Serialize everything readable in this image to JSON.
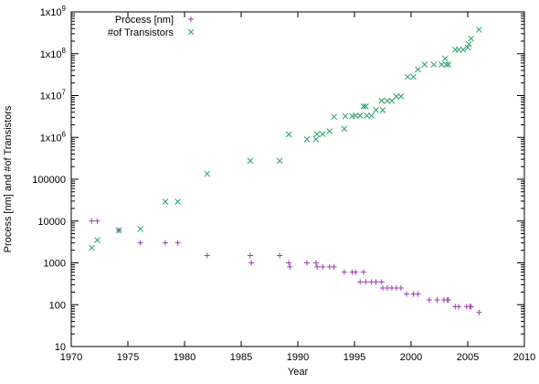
{
  "chart_data": {
    "type": "scatter",
    "title": "",
    "xlabel": "Year",
    "ylabel": "Process [nm] and #of Transistors",
    "xlim": [
      1970,
      2010
    ],
    "ylim": [
      10,
      1000000000
    ],
    "yscale": "log",
    "grid": false,
    "legend_position": "top-left",
    "x_ticks": [
      1970,
      1975,
      1980,
      1985,
      1990,
      1995,
      2000,
      2005,
      2010
    ],
    "y_ticks": [
      {
        "value": 10,
        "label": "10"
      },
      {
        "value": 100,
        "label": "100"
      },
      {
        "value": 1000,
        "label": "1000"
      },
      {
        "value": 10000,
        "label": "10000"
      },
      {
        "value": 100000,
        "label": "100000"
      },
      {
        "value": 1000000,
        "base": "1x10",
        "exp": "6"
      },
      {
        "value": 10000000,
        "base": "1x10",
        "exp": "7"
      },
      {
        "value": 100000000,
        "base": "1x10",
        "exp": "8"
      },
      {
        "value": 1000000000,
        "base": "1x10",
        "exp": "9"
      }
    ],
    "series": [
      {
        "name": "Process [nm]",
        "marker": "plus",
        "color": "#9B3FB5",
        "points": [
          [
            1971.8,
            10000
          ],
          [
            1972.3,
            10000
          ],
          [
            1974.2,
            6000
          ],
          [
            1976.1,
            3000
          ],
          [
            1978.3,
            3000
          ],
          [
            1979.4,
            3000
          ],
          [
            1982.0,
            1500
          ],
          [
            1985.8,
            1500
          ],
          [
            1985.9,
            1000
          ],
          [
            1988.4,
            1500
          ],
          [
            1989.2,
            1000
          ],
          [
            1989.3,
            800
          ],
          [
            1990.8,
            1000
          ],
          [
            1991.6,
            1000
          ],
          [
            1991.7,
            800
          ],
          [
            1992.2,
            800
          ],
          [
            1992.8,
            800
          ],
          [
            1993.2,
            800
          ],
          [
            1994.1,
            600
          ],
          [
            1994.8,
            600
          ],
          [
            1995.1,
            600
          ],
          [
            1995.5,
            350
          ],
          [
            1995.8,
            600
          ],
          [
            1996.0,
            350
          ],
          [
            1996.5,
            350
          ],
          [
            1996.9,
            350
          ],
          [
            1997.4,
            350
          ],
          [
            1997.5,
            250
          ],
          [
            1997.9,
            250
          ],
          [
            1998.3,
            250
          ],
          [
            1998.7,
            250
          ],
          [
            1999.1,
            250
          ],
          [
            1999.6,
            180
          ],
          [
            2000.2,
            180
          ],
          [
            2000.6,
            180
          ],
          [
            2001.6,
            130
          ],
          [
            2002.3,
            130
          ],
          [
            2002.9,
            130
          ],
          [
            2003.2,
            130
          ],
          [
            2003.3,
            130
          ],
          [
            2003.9,
            90
          ],
          [
            2004.2,
            90
          ],
          [
            2004.9,
            90
          ],
          [
            2005.2,
            90
          ],
          [
            2005.3,
            90
          ],
          [
            2006.0,
            65
          ]
        ]
      },
      {
        "name": "#of Transistors",
        "marker": "cross",
        "color": "#2E9E6A",
        "points": [
          [
            1971.8,
            2300
          ],
          [
            1972.3,
            3500
          ],
          [
            1974.2,
            6000
          ],
          [
            1976.1,
            6500
          ],
          [
            1978.3,
            29000
          ],
          [
            1979.4,
            29000
          ],
          [
            1982.0,
            134000
          ],
          [
            1985.8,
            275000
          ],
          [
            1988.4,
            275000
          ],
          [
            1989.2,
            1180000
          ],
          [
            1990.8,
            900000
          ],
          [
            1991.6,
            900000
          ],
          [
            1991.7,
            1200000
          ],
          [
            1992.2,
            1200000
          ],
          [
            1992.8,
            1400000
          ],
          [
            1993.2,
            3100000
          ],
          [
            1994.1,
            1600000
          ],
          [
            1994.2,
            3200000
          ],
          [
            1994.8,
            3200000
          ],
          [
            1995.1,
            3300000
          ],
          [
            1995.5,
            3300000
          ],
          [
            1995.8,
            5500000
          ],
          [
            1996.0,
            5500000
          ],
          [
            1996.1,
            3300000
          ],
          [
            1996.5,
            3300000
          ],
          [
            1996.9,
            4500000
          ],
          [
            1997.4,
            7500000
          ],
          [
            1997.5,
            4500000
          ],
          [
            1997.9,
            7500000
          ],
          [
            1998.3,
            7500000
          ],
          [
            1998.7,
            9500000
          ],
          [
            1999.1,
            9500000
          ],
          [
            1999.7,
            28000000
          ],
          [
            2000.2,
            28000000
          ],
          [
            2000.6,
            42000000
          ],
          [
            2001.2,
            55000000
          ],
          [
            2002.0,
            55000000
          ],
          [
            2002.7,
            55000000
          ],
          [
            2003.0,
            77000000
          ],
          [
            2003.1,
            55000000
          ],
          [
            2003.3,
            55000000
          ],
          [
            2003.9,
            125000000
          ],
          [
            2004.2,
            125000000
          ],
          [
            2004.6,
            125000000
          ],
          [
            2005.0,
            140000000
          ],
          [
            2005.1,
            169000000
          ],
          [
            2005.3,
            230000000
          ],
          [
            2006.0,
            376000000
          ]
        ]
      }
    ]
  }
}
